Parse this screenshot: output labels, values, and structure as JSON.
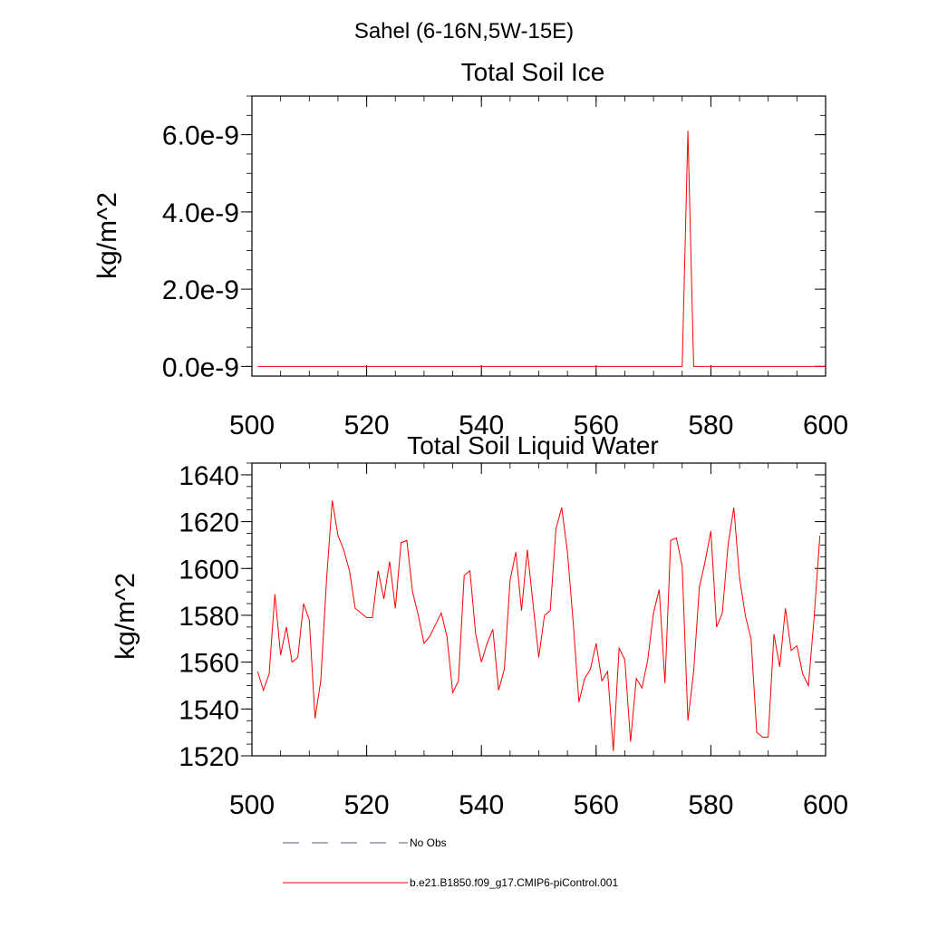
{
  "figure": {
    "region_title": "Sahel (6-16N,5W-15E)"
  },
  "legend": {
    "obs_label": "No Obs",
    "model_label": "b.e21.B1850.f09_g17.CMIP6-piControl.001",
    "obs_color": "#5a5a8c",
    "model_color": "#ff0000"
  },
  "chart_data": [
    {
      "type": "line",
      "title": "Total Soil Ice",
      "xlabel": "",
      "ylabel": "kg/m^2",
      "xlim": [
        500,
        600
      ],
      "ylim": [
        -2.5e-10,
        7e-09
      ],
      "xticks": [
        500,
        520,
        540,
        560,
        580,
        600
      ],
      "xtick_labels": [
        "500",
        "520",
        "540",
        "560",
        "580",
        "600"
      ],
      "yticks": [
        0,
        2e-09,
        4e-09,
        6e-09
      ],
      "ytick_labels": [
        "0.0e-9",
        "2.0e-9",
        "4.0e-9",
        "6.0e-9"
      ],
      "series": [
        {
          "name": "b.e21.B1850.f09_g17.CMIP6-piControl.001",
          "color": "#ff0000",
          "x": [
            501,
            575,
            576,
            577,
            600
          ],
          "values": [
            0,
            0,
            6.1e-09,
            0,
            0
          ]
        }
      ]
    },
    {
      "type": "line",
      "title": "Total Soil Liquid Water",
      "xlabel": "",
      "ylabel": "kg/m^2",
      "xlim": [
        500,
        600
      ],
      "ylim": [
        1520,
        1645
      ],
      "xticks": [
        500,
        520,
        540,
        560,
        580,
        600
      ],
      "xtick_labels": [
        "500",
        "520",
        "540",
        "560",
        "580",
        "600"
      ],
      "yticks": [
        1520,
        1540,
        1560,
        1580,
        1600,
        1620,
        1640
      ],
      "ytick_labels": [
        "1520",
        "1540",
        "1560",
        "1580",
        "1600",
        "1620",
        "1640"
      ],
      "series": [
        {
          "name": "b.e21.B1850.f09_g17.CMIP6-piControl.001",
          "color": "#ff0000",
          "x_start": 501,
          "values": [
            1556,
            1548,
            1555,
            1589,
            1563,
            1575,
            1560,
            1562,
            1585,
            1578,
            1536,
            1552,
            1595,
            1629,
            1614,
            1608,
            1599,
            1583,
            1581,
            1579,
            1579,
            1599,
            1587,
            1603,
            1583,
            1611,
            1612,
            1590,
            1580,
            1568,
            1571,
            1576,
            1581,
            1571,
            1547,
            1552,
            1597,
            1599,
            1572,
            1560,
            1568,
            1574,
            1548,
            1557,
            1595,
            1607,
            1582,
            1608,
            1585,
            1562,
            1580,
            1582,
            1617,
            1626,
            1607,
            1577,
            1543,
            1553,
            1557,
            1568,
            1552,
            1556,
            1522,
            1566,
            1561,
            1526,
            1553,
            1549,
            1561,
            1581,
            1591,
            1551,
            1612,
            1613,
            1601,
            1535,
            1556,
            1592,
            1603,
            1616,
            1575,
            1581,
            1610,
            1626,
            1596,
            1580,
            1570,
            1530,
            1528,
            1528,
            1572,
            1558,
            1583,
            1565,
            1567,
            1555,
            1550,
            1579,
            1614
          ]
        }
      ]
    }
  ]
}
